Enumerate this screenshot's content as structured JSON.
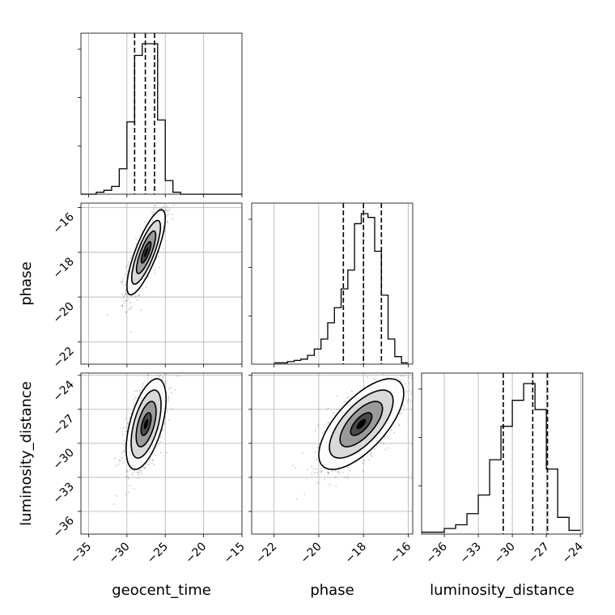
{
  "chart_data": {
    "type": "corner",
    "parameters": [
      "geocent_time",
      "phase",
      "luminosity_distance"
    ],
    "axis_labels": [
      "geocent_time",
      "phase",
      "luminosity_distance"
    ],
    "ranges": [
      [
        -36,
        -15
      ],
      [
        -23.0,
        -15.8
      ],
      [
        -38.0,
        -23.8
      ]
    ],
    "ticks": [
      [
        -35,
        -30,
        -25,
        -20,
        -15
      ],
      [
        -22,
        -20,
        -18,
        -16
      ],
      [
        -36,
        -33,
        -30,
        -27,
        -24
      ]
    ],
    "grid": true,
    "histograms": [
      {
        "parameter": "geocent_time",
        "bin_edges": [
          -36,
          -35,
          -34,
          -33,
          -32,
          -31,
          -30,
          -29,
          -28,
          -27,
          -26,
          -25,
          -24,
          -23,
          -22,
          -21,
          -20,
          -19,
          -18,
          -17,
          -16,
          -15
        ],
        "counts": [
          0,
          0,
          1,
          2,
          4,
          13,
          37,
          71,
          77,
          77,
          38,
          7,
          1,
          0,
          0,
          0,
          0,
          0,
          0,
          0,
          0
        ],
        "quantiles": [
          -29.0,
          -27.6,
          -26.4
        ]
      },
      {
        "parameter": "phase",
        "bin_edges": [
          -22.0,
          -21.7,
          -21.4,
          -21.1,
          -20.8,
          -20.5,
          -20.2,
          -19.9,
          -19.6,
          -19.3,
          -19.0,
          -18.7,
          -18.4,
          -18.1,
          -17.8,
          -17.5,
          -17.2,
          -16.9,
          -16.6,
          -16.3,
          -16.0
        ],
        "counts": [
          1,
          1,
          2,
          3,
          4,
          7,
          12,
          20,
          33,
          45,
          60,
          75,
          112,
          120,
          117,
          90,
          55,
          20,
          6,
          1
        ],
        "quantiles": [
          -18.9,
          -18.0,
          -17.2
        ]
      },
      {
        "parameter": "luminosity_distance",
        "bin_edges": [
          -38,
          -37,
          -36,
          -35,
          -34,
          -33,
          -32,
          -31,
          -30,
          -29,
          -28,
          -27,
          -26,
          -25,
          -24
        ],
        "counts": [
          1,
          1,
          3,
          5,
          11,
          21,
          40,
          58,
          72,
          81,
          67,
          35,
          9,
          2
        ],
        "quantiles": [
          -30.8,
          -28.2,
          -26.9
        ]
      }
    ],
    "joint_distributions": [
      {
        "x": "geocent_time",
        "y": "phase",
        "mean": [
          -27.5,
          -18.0
        ],
        "std": [
          1.25,
          0.95
        ],
        "correlation": 0.8
      },
      {
        "x": "geocent_time",
        "y": "luminosity_distance",
        "mean": [
          -27.5,
          -28.3
        ],
        "std": [
          1.3,
          2.0
        ],
        "correlation": 0.55
      },
      {
        "x": "phase",
        "y": "luminosity_distance",
        "mean": [
          -18.1,
          -28.3
        ],
        "std": [
          0.95,
          2.0
        ],
        "correlation": 0.68
      }
    ],
    "contour_levels_sigma": [
      0.5,
      1.0,
      1.5,
      2.0
    ]
  }
}
